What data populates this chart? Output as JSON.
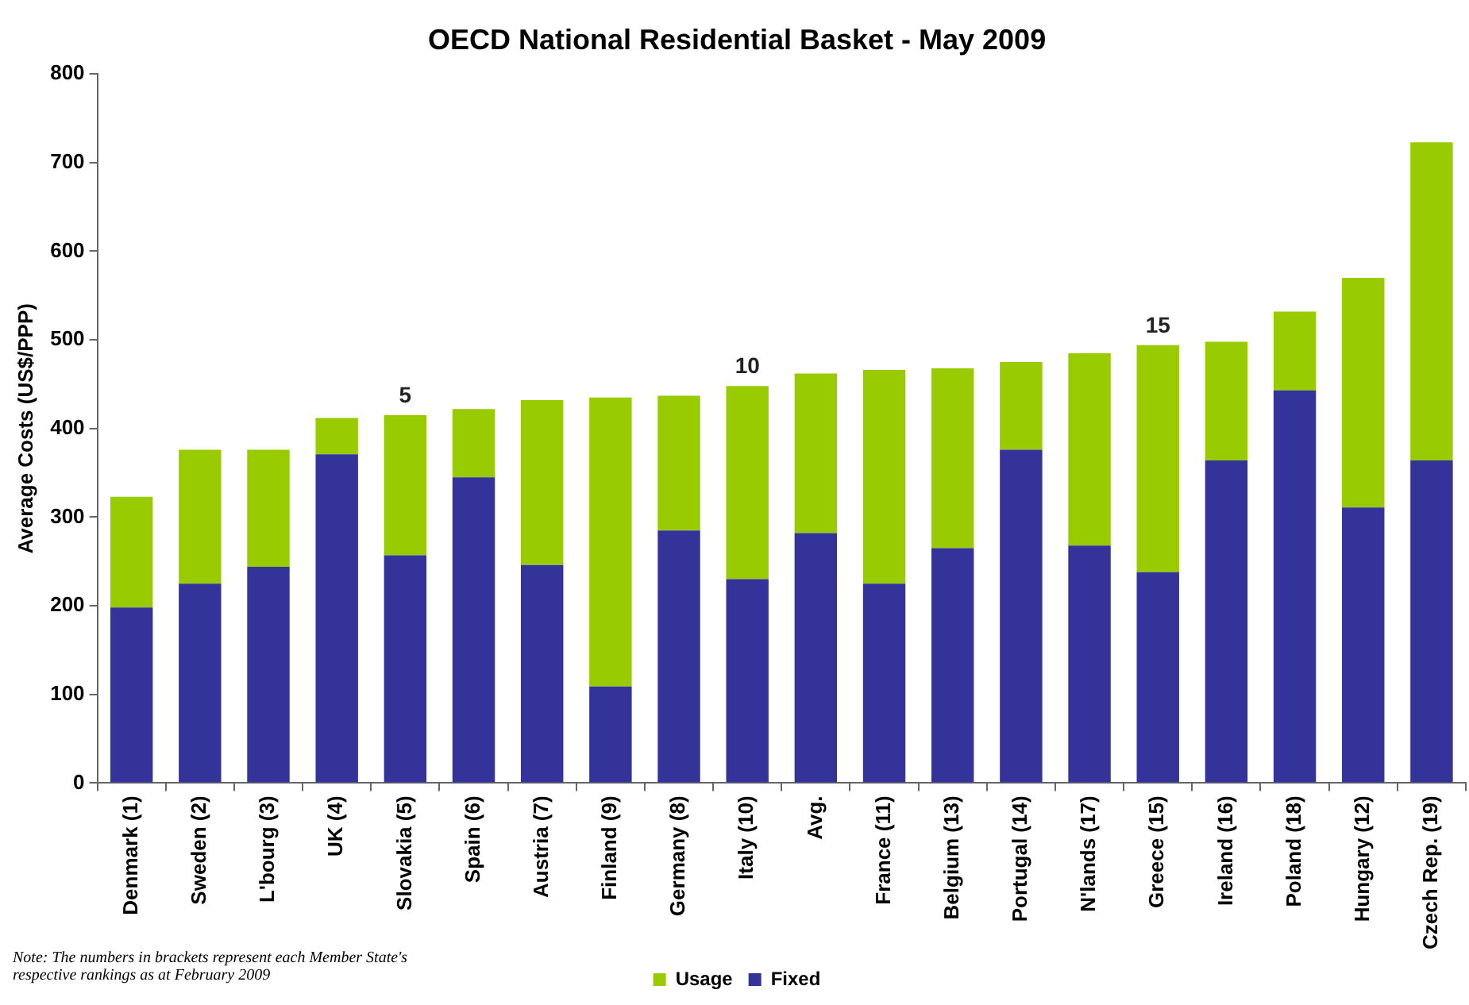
{
  "chart_data": {
    "type": "bar",
    "stacked": true,
    "title": "OECD National Residential Basket - May 2009",
    "ylabel": "Average Costs (US$/PPP)",
    "categories": [
      "Denmark (1)",
      "Sweden (2)",
      "L'bourg (3)",
      "UK (4)",
      "Slovakia (5)",
      "Spain (6)",
      "Austria (7)",
      "Finland (9)",
      "Germany (8)",
      "Italy (10)",
      "Avg.",
      "France (11)",
      "Belgium (13)",
      "Portugal (14)",
      "N'lands (17)",
      "Greece (15)",
      "Ireland (16)",
      "Poland (18)",
      "Hungary (12)",
      "Czech Rep. (19)"
    ],
    "series": [
      {
        "name": "Fixed",
        "color": "#333399",
        "values": [
          198,
          225,
          244,
          371,
          257,
          345,
          246,
          109,
          285,
          230,
          282,
          225,
          265,
          376,
          268,
          238,
          364,
          443,
          311,
          364
        ]
      },
      {
        "name": "Usage",
        "color": "#99cc00",
        "values": [
          125,
          151,
          132,
          41,
          158,
          77,
          186,
          326,
          152,
          218,
          180,
          241,
          203,
          99,
          217,
          256,
          134,
          89,
          259,
          359
        ]
      }
    ],
    "ylim": [
      0,
      800
    ],
    "yticks": [
      0,
      100,
      200,
      300,
      400,
      500,
      600,
      700,
      800
    ],
    "grid": false,
    "legend": "bottom",
    "annotations": [
      {
        "text": "5",
        "x": "Slovakia (5)",
        "y": 415
      },
      {
        "text": "10",
        "x": "Italy (10)",
        "y": 448
      },
      {
        "text": "15",
        "x": "Greece (15)",
        "y": 494
      },
      "Note: The numbers in brackets represent each Member State's respective rankings as at February 2009"
    ]
  }
}
